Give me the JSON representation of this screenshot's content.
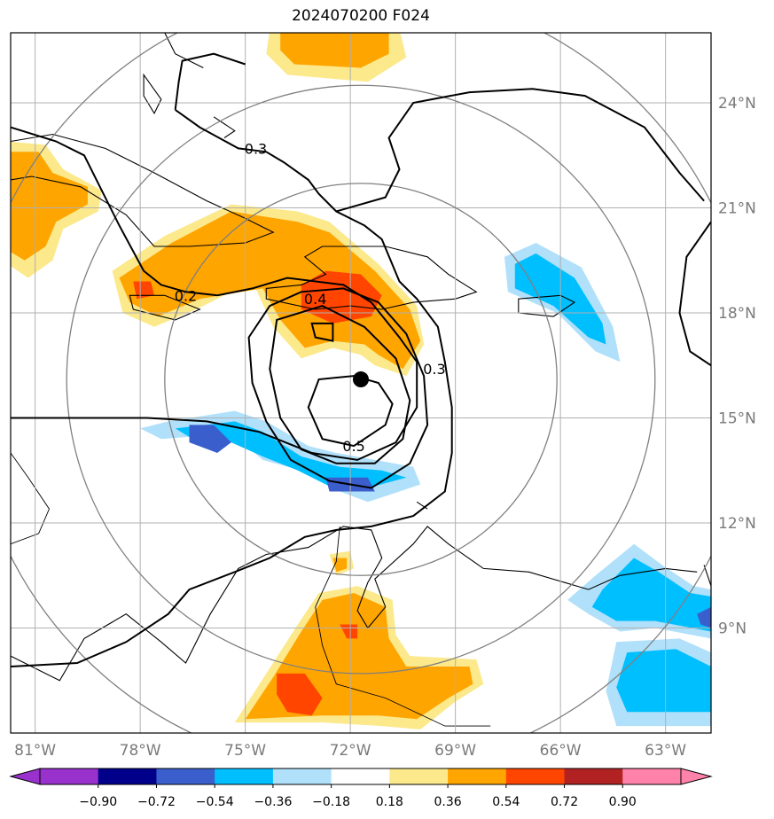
{
  "title": "2024070200 F024",
  "map": {
    "lon_range": [
      -81.7,
      -61.7
    ],
    "lat_range": [
      6.0,
      26.0
    ],
    "lon_ticks": [
      "81°W",
      "78°W",
      "75°W",
      "72°W",
      "69°W",
      "66°W",
      "63°W"
    ],
    "lat_ticks": [
      "24°N",
      "21°N",
      "18°N",
      "15°N",
      "12°N",
      "9°N"
    ],
    "storm_center": {
      "lon": -71.7,
      "lat": 16.1
    },
    "range_ring_color": "#808080",
    "gridline_color": "#b0b0b0",
    "contour_labels": [
      {
        "text": "0.3",
        "lon": -74.7,
        "lat": 22.7
      },
      {
        "text": "0.2",
        "lon": -76.7,
        "lat": 18.5
      },
      {
        "text": "0.3",
        "lon": -69.6,
        "lat": 16.4
      },
      {
        "text": "0.5",
        "lon": -71.9,
        "lat": 14.2
      },
      {
        "text": "0.4",
        "lon": -73.0,
        "lat": 18.4
      }
    ]
  },
  "colorbar": {
    "tick_labels": [
      "−0.90",
      "−0.72",
      "−0.54",
      "−0.36",
      "−0.18",
      "0.18",
      "0.36",
      "0.54",
      "0.72",
      "0.90"
    ],
    "colors": [
      "#9932cc",
      "#00008b",
      "#3a5fcd",
      "#00bfff",
      "#b0e0fa",
      "#ffffff",
      "#fce98c",
      "#ffa500",
      "#ff4500",
      "#b22222",
      "#ff82ab",
      "#ff82ab"
    ]
  }
}
